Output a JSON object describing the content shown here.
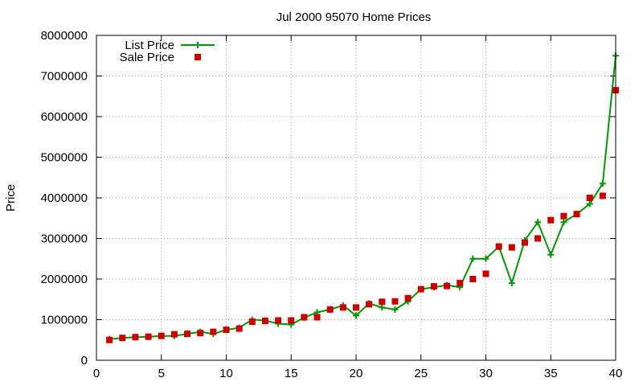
{
  "chart_data": {
    "type": "line",
    "title": "Jul 2000 95070 Home Prices",
    "xlabel": "",
    "ylabel": "Price",
    "xlim": [
      0,
      40
    ],
    "ylim": [
      0,
      8000000
    ],
    "xticks": [
      0,
      5,
      10,
      15,
      20,
      25,
      30,
      35,
      40
    ],
    "yticks": [
      0,
      1000000,
      2000000,
      3000000,
      4000000,
      5000000,
      6000000,
      7000000,
      8000000
    ],
    "xtick_labels": [
      "0",
      "5",
      "10",
      "15",
      "20",
      "25",
      "30",
      "35",
      "40"
    ],
    "ytick_labels": [
      "0",
      "1000000",
      "2000000",
      "3000000",
      "4000000",
      "5000000",
      "6000000",
      "7000000",
      "8000000"
    ],
    "grid": true,
    "legend_position": "top-left",
    "x": [
      1,
      2,
      3,
      4,
      5,
      6,
      7,
      8,
      9,
      10,
      11,
      12,
      13,
      14,
      15,
      16,
      17,
      18,
      19,
      20,
      21,
      22,
      23,
      24,
      25,
      26,
      27,
      28,
      29,
      30,
      31,
      32,
      33,
      34,
      35,
      36,
      37,
      38,
      39,
      40
    ],
    "series": [
      {
        "name": "List Price",
        "kind": "line+cross",
        "color": "#009900",
        "values": [
          520000,
          550000,
          570000,
          580000,
          600000,
          600000,
          650000,
          700000,
          650000,
          750000,
          800000,
          1000000,
          980000,
          900000,
          880000,
          1050000,
          1180000,
          1250000,
          1350000,
          1100000,
          1400000,
          1300000,
          1250000,
          1450000,
          1750000,
          1800000,
          1850000,
          1800000,
          2500000,
          2500000,
          2800000,
          1900000,
          2950000,
          3400000,
          2600000,
          3400000,
          3600000,
          3850000,
          4350000,
          7500000
        ]
      },
      {
        "name": "Sale Price",
        "kind": "square",
        "color": "#cc0000",
        "values": [
          500000,
          550000,
          570000,
          580000,
          600000,
          640000,
          650000,
          670000,
          700000,
          750000,
          780000,
          950000,
          970000,
          980000,
          980000,
          1060000,
          1060000,
          1250000,
          1300000,
          1300000,
          1380000,
          1440000,
          1450000,
          1530000,
          1750000,
          1820000,
          1830000,
          1900000,
          2000000,
          2130000,
          2800000,
          2780000,
          2900000,
          3000000,
          3450000,
          3550000,
          3600000,
          4000000,
          4050000,
          6650000
        ]
      }
    ]
  }
}
